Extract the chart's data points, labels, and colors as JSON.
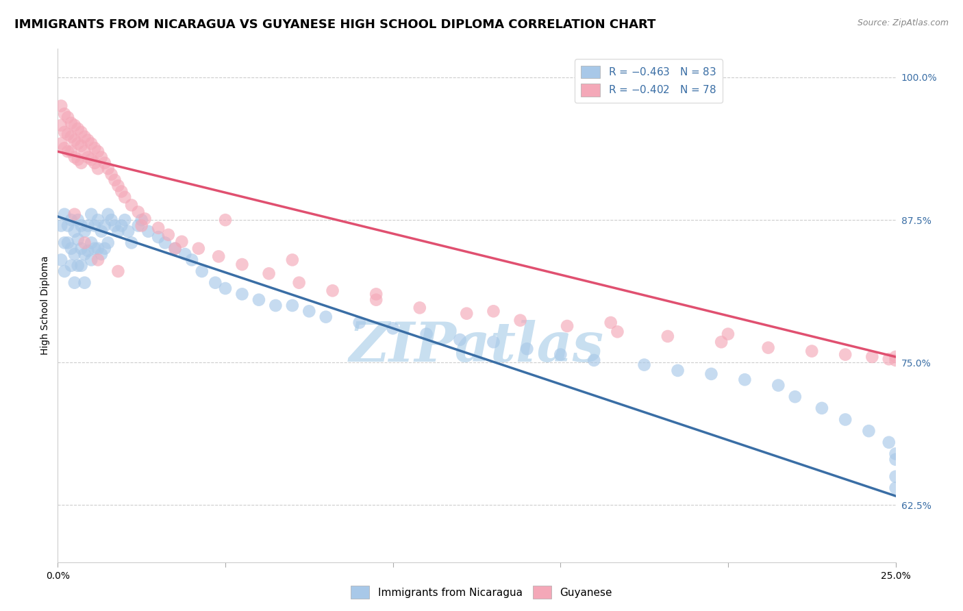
{
  "title": "IMMIGRANTS FROM NICARAGUA VS GUYANESE HIGH SCHOOL DIPLOMA CORRELATION CHART",
  "source": "Source: ZipAtlas.com",
  "ylabel": "High School Diploma",
  "legend_blue_label": "Immigrants from Nicaragua",
  "legend_pink_label": "Guyanese",
  "blue_color": "#A8C8E8",
  "pink_color": "#F4A8B8",
  "blue_line_color": "#3A6EA5",
  "pink_line_color": "#E05070",
  "background_color": "#ffffff",
  "watermark_text": "ZIPatlas",
  "watermark_color": "#C8DFF0",
  "title_fontsize": 13,
  "axis_label_fontsize": 10,
  "tick_fontsize": 10,
  "xmin": 0.0,
  "xmax": 0.25,
  "ymin": 0.575,
  "ymax": 1.025,
  "yticks": [
    0.625,
    0.75,
    0.875,
    1.0
  ],
  "xticks": [
    0.0,
    0.05,
    0.1,
    0.15,
    0.2,
    0.25
  ],
  "blue_line_x0": 0.0,
  "blue_line_y0": 0.878,
  "blue_line_x1": 0.25,
  "blue_line_y1": 0.633,
  "pink_line_x0": 0.0,
  "pink_line_y0": 0.935,
  "pink_line_x1": 0.25,
  "pink_line_y1": 0.755,
  "blue_x": [
    0.001,
    0.001,
    0.002,
    0.002,
    0.002,
    0.003,
    0.003,
    0.004,
    0.004,
    0.004,
    0.005,
    0.005,
    0.005,
    0.006,
    0.006,
    0.006,
    0.007,
    0.007,
    0.007,
    0.008,
    0.008,
    0.008,
    0.009,
    0.009,
    0.01,
    0.01,
    0.01,
    0.011,
    0.011,
    0.012,
    0.012,
    0.013,
    0.013,
    0.014,
    0.014,
    0.015,
    0.015,
    0.016,
    0.017,
    0.018,
    0.019,
    0.02,
    0.021,
    0.022,
    0.024,
    0.025,
    0.027,
    0.03,
    0.032,
    0.035,
    0.038,
    0.04,
    0.043,
    0.047,
    0.05,
    0.055,
    0.06,
    0.065,
    0.07,
    0.075,
    0.08,
    0.09,
    0.1,
    0.11,
    0.12,
    0.13,
    0.14,
    0.15,
    0.16,
    0.175,
    0.185,
    0.195,
    0.205,
    0.215,
    0.22,
    0.228,
    0.235,
    0.242,
    0.248,
    0.25,
    0.25,
    0.25,
    0.25
  ],
  "blue_y": [
    0.87,
    0.84,
    0.88,
    0.855,
    0.83,
    0.87,
    0.855,
    0.875,
    0.85,
    0.835,
    0.865,
    0.845,
    0.82,
    0.875,
    0.858,
    0.835,
    0.87,
    0.85,
    0.835,
    0.865,
    0.845,
    0.82,
    0.87,
    0.848,
    0.88,
    0.855,
    0.84,
    0.87,
    0.85,
    0.875,
    0.85,
    0.865,
    0.845,
    0.87,
    0.85,
    0.88,
    0.855,
    0.875,
    0.87,
    0.865,
    0.87,
    0.875,
    0.865,
    0.855,
    0.87,
    0.875,
    0.865,
    0.86,
    0.855,
    0.85,
    0.845,
    0.84,
    0.83,
    0.82,
    0.815,
    0.81,
    0.805,
    0.8,
    0.8,
    0.795,
    0.79,
    0.785,
    0.78,
    0.775,
    0.77,
    0.768,
    0.762,
    0.757,
    0.752,
    0.748,
    0.743,
    0.74,
    0.735,
    0.73,
    0.72,
    0.71,
    0.7,
    0.69,
    0.68,
    0.67,
    0.665,
    0.65,
    0.64
  ],
  "pink_x": [
    0.001,
    0.001,
    0.001,
    0.002,
    0.002,
    0.002,
    0.003,
    0.003,
    0.003,
    0.004,
    0.004,
    0.004,
    0.005,
    0.005,
    0.005,
    0.006,
    0.006,
    0.006,
    0.007,
    0.007,
    0.007,
    0.008,
    0.008,
    0.009,
    0.009,
    0.01,
    0.01,
    0.011,
    0.011,
    0.012,
    0.012,
    0.013,
    0.014,
    0.015,
    0.016,
    0.017,
    0.018,
    0.019,
    0.02,
    0.022,
    0.024,
    0.026,
    0.03,
    0.033,
    0.037,
    0.042,
    0.048,
    0.055,
    0.063,
    0.072,
    0.082,
    0.095,
    0.108,
    0.122,
    0.138,
    0.152,
    0.167,
    0.182,
    0.198,
    0.212,
    0.225,
    0.235,
    0.243,
    0.248,
    0.25,
    0.005,
    0.008,
    0.012,
    0.018,
    0.025,
    0.035,
    0.05,
    0.07,
    0.095,
    0.13,
    0.165,
    0.2,
    0.25
  ],
  "pink_y": [
    0.975,
    0.958,
    0.942,
    0.968,
    0.952,
    0.938,
    0.965,
    0.95,
    0.935,
    0.96,
    0.948,
    0.935,
    0.958,
    0.945,
    0.93,
    0.955,
    0.942,
    0.928,
    0.952,
    0.94,
    0.925,
    0.948,
    0.935,
    0.945,
    0.93,
    0.942,
    0.928,
    0.938,
    0.925,
    0.935,
    0.92,
    0.93,
    0.925,
    0.92,
    0.915,
    0.91,
    0.905,
    0.9,
    0.895,
    0.888,
    0.882,
    0.876,
    0.868,
    0.862,
    0.856,
    0.85,
    0.843,
    0.836,
    0.828,
    0.82,
    0.813,
    0.805,
    0.798,
    0.793,
    0.787,
    0.782,
    0.777,
    0.773,
    0.768,
    0.763,
    0.76,
    0.757,
    0.755,
    0.753,
    0.752,
    0.88,
    0.855,
    0.84,
    0.83,
    0.87,
    0.85,
    0.875,
    0.84,
    0.81,
    0.795,
    0.785,
    0.775,
    0.755
  ]
}
